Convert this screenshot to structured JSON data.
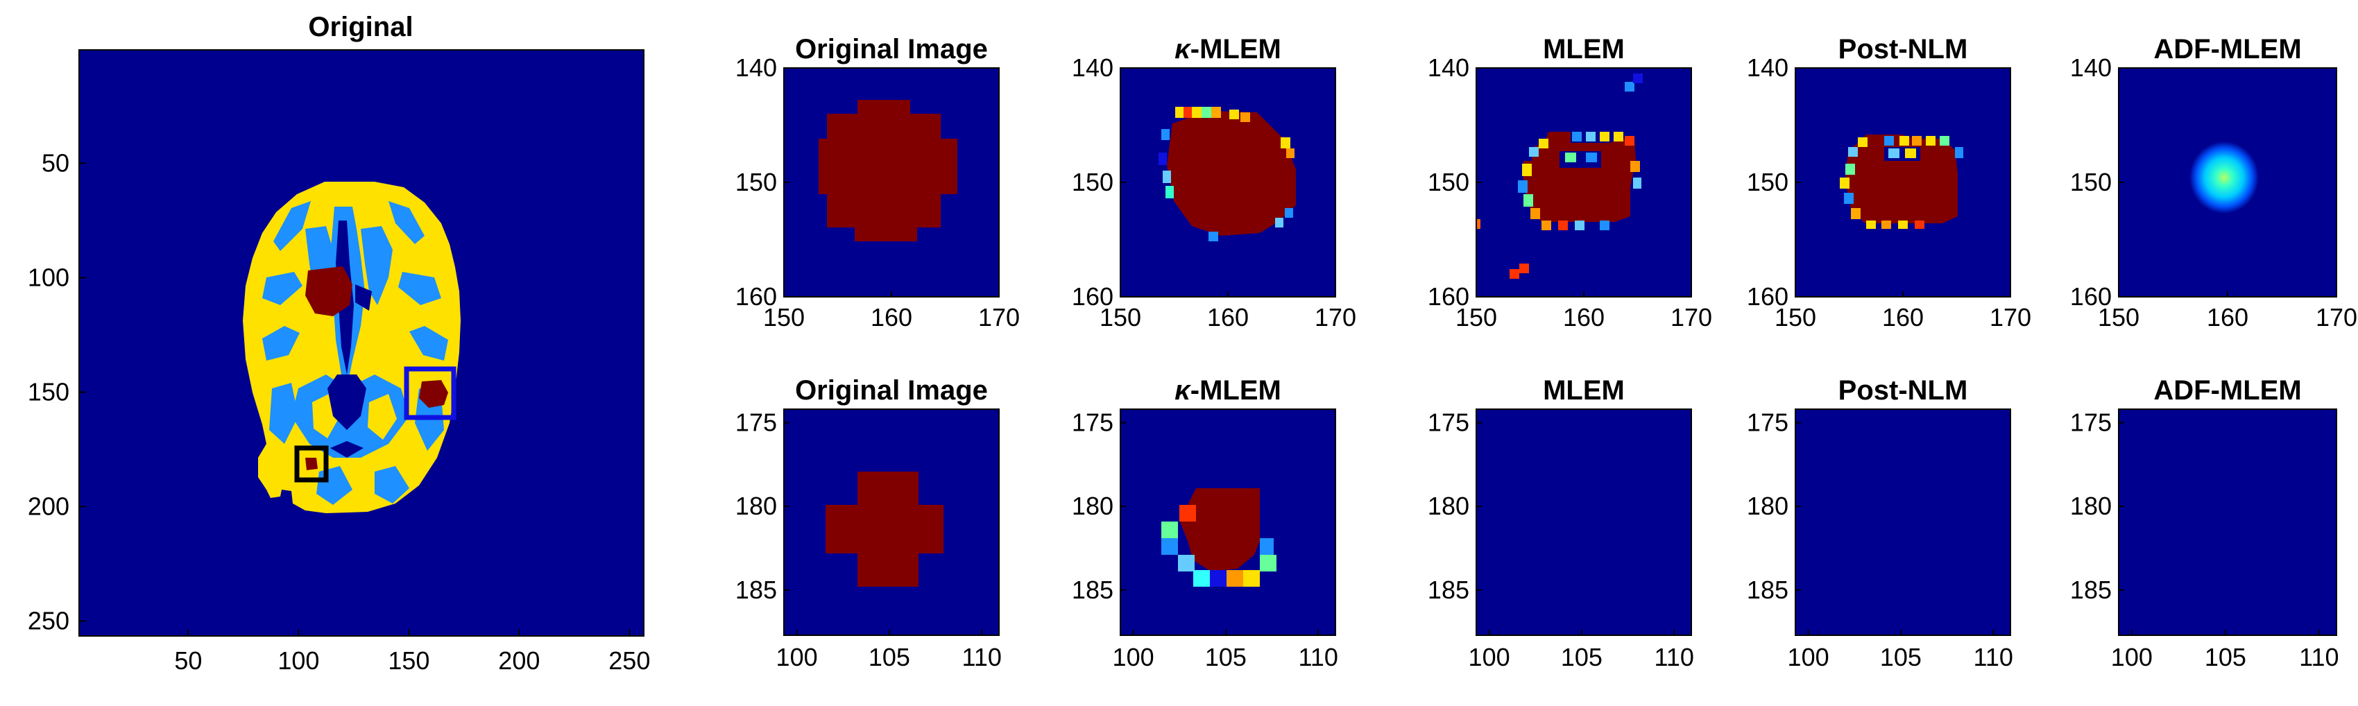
{
  "colors": {
    "background": "#00008f",
    "csf": "#1e90ff",
    "tissue": "#ffe100",
    "lesion": "#800000",
    "tumor_box_blue": "#1010e0",
    "tumor_box_black": "#000000",
    "axes": "#000000"
  },
  "panels": {
    "main": {
      "title": "Original",
      "xticks": [
        "50",
        "100",
        "150",
        "200",
        "250"
      ],
      "yticks": [
        "50",
        "100",
        "150",
        "200",
        "250"
      ]
    },
    "row1": {
      "xticks": [
        "150",
        "160",
        "170"
      ],
      "yticks": [
        "140",
        "150",
        "160"
      ],
      "titles": [
        {
          "main": "Original Image"
        },
        {
          "prefix": "κ",
          "main": "-MLEM"
        },
        {
          "main": "MLEM"
        },
        {
          "main": "Post-NLM"
        },
        {
          "main": "ADF-MLEM"
        }
      ]
    },
    "row2": {
      "xticks": [
        "100",
        "105",
        "110"
      ],
      "yticks": [
        "175",
        "180",
        "185"
      ],
      "titles": [
        {
          "main": "Original Image"
        },
        {
          "prefix": "κ",
          "main": "-MLEM"
        },
        {
          "main": "MLEM"
        },
        {
          "main": "Post-NLM"
        },
        {
          "main": "ADF-MLEM"
        }
      ]
    }
  }
}
